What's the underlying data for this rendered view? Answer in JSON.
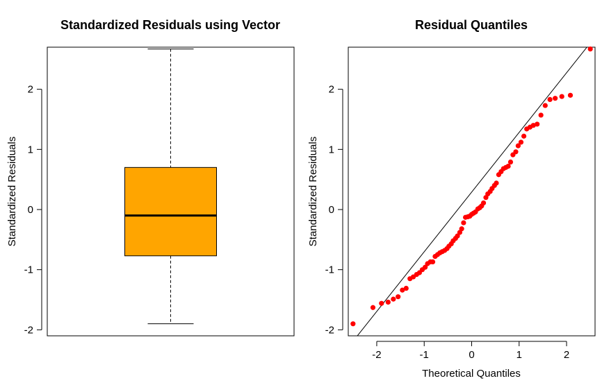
{
  "chart_data": [
    {
      "type": "box",
      "title": "Standardized Residuals using Vector",
      "ylabel": "Standardized Residuals",
      "xlabel": "",
      "ylim": [
        -2.1,
        2.7
      ],
      "yticks": [
        -2,
        -1,
        0,
        1,
        2
      ],
      "ytick_labels": [
        "-2",
        "-1",
        "0",
        "1",
        "2"
      ],
      "box": {
        "min": -1.9,
        "q1": -0.77,
        "median": -0.1,
        "q3": 0.7,
        "max": 2.67
      },
      "box_color": "#FFA500",
      "grid": false
    },
    {
      "type": "scatter",
      "title": "Residual Quantiles",
      "xlabel": "Theoretical Quantiles",
      "ylabel": "Standardized Residuals",
      "xlim": [
        -2.6,
        2.6
      ],
      "ylim": [
        -2.1,
        2.7
      ],
      "xticks": [
        -2,
        -1,
        0,
        1,
        2
      ],
      "xtick_labels": [
        "-2",
        "-1",
        "0",
        "1",
        "2"
      ],
      "yticks": [
        -2,
        -1,
        0,
        1,
        2
      ],
      "ytick_labels": [
        "-2",
        "-1",
        "0",
        "1",
        "2"
      ],
      "point_color": "#FF0000",
      "grid": false,
      "reference_line": {
        "x": [
          -2.6,
          2.6
        ],
        "y": [
          -2.29,
          2.87
        ]
      },
      "points": [
        [
          -2.5,
          -1.9
        ],
        [
          -2.08,
          -1.63
        ],
        [
          -1.9,
          -1.56
        ],
        [
          -1.76,
          -1.54
        ],
        [
          -1.65,
          -1.49
        ],
        [
          -1.55,
          -1.45
        ],
        [
          -1.46,
          -1.34
        ],
        [
          -1.38,
          -1.31
        ],
        [
          -1.3,
          -1.15
        ],
        [
          -1.23,
          -1.12
        ],
        [
          -1.16,
          -1.08
        ],
        [
          -1.1,
          -1.05
        ],
        [
          -1.04,
          -1.0
        ],
        [
          -0.98,
          -0.96
        ],
        [
          -0.93,
          -0.9
        ],
        [
          -0.87,
          -0.87
        ],
        [
          -0.82,
          -0.87
        ],
        [
          -0.77,
          -0.78
        ],
        [
          -0.72,
          -0.75
        ],
        [
          -0.67,
          -0.72
        ],
        [
          -0.62,
          -0.7
        ],
        [
          -0.57,
          -0.68
        ],
        [
          -0.52,
          -0.65
        ],
        [
          -0.48,
          -0.61
        ],
        [
          -0.43,
          -0.57
        ],
        [
          -0.39,
          -0.52
        ],
        [
          -0.34,
          -0.48
        ],
        [
          -0.3,
          -0.44
        ],
        [
          -0.25,
          -0.38
        ],
        [
          -0.21,
          -0.32
        ],
        [
          -0.17,
          -0.22
        ],
        [
          -0.13,
          -0.13
        ],
        [
          -0.08,
          -0.12
        ],
        [
          -0.04,
          -0.11
        ],
        [
          0.0,
          -0.08
        ],
        [
          0.04,
          -0.06
        ],
        [
          0.08,
          -0.04
        ],
        [
          0.13,
          0.01
        ],
        [
          0.17,
          0.03
        ],
        [
          0.21,
          0.06
        ],
        [
          0.25,
          0.11
        ],
        [
          0.3,
          0.2
        ],
        [
          0.34,
          0.26
        ],
        [
          0.39,
          0.3
        ],
        [
          0.43,
          0.35
        ],
        [
          0.48,
          0.4
        ],
        [
          0.52,
          0.44
        ],
        [
          0.57,
          0.58
        ],
        [
          0.62,
          0.63
        ],
        [
          0.67,
          0.68
        ],
        [
          0.72,
          0.7
        ],
        [
          0.77,
          0.72
        ],
        [
          0.82,
          0.79
        ],
        [
          0.87,
          0.91
        ],
        [
          0.93,
          0.96
        ],
        [
          0.98,
          1.06
        ],
        [
          1.04,
          1.12
        ],
        [
          1.1,
          1.22
        ],
        [
          1.16,
          1.34
        ],
        [
          1.23,
          1.37
        ],
        [
          1.3,
          1.4
        ],
        [
          1.38,
          1.42
        ],
        [
          1.46,
          1.57
        ],
        [
          1.55,
          1.73
        ],
        [
          1.65,
          1.83
        ],
        [
          1.76,
          1.85
        ],
        [
          1.9,
          1.88
        ],
        [
          2.08,
          1.9
        ],
        [
          2.5,
          2.67
        ]
      ]
    }
  ]
}
